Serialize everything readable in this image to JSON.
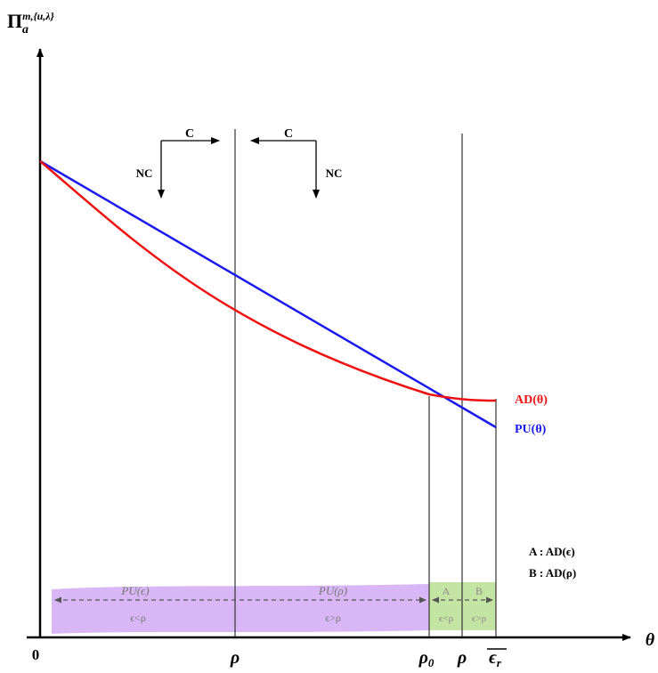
{
  "axes": {
    "y_label_base": "Π",
    "y_label_sup": "m,{u,λ}",
    "y_label_sub": "a",
    "x_label": "θ",
    "origin_label": "0"
  },
  "x_ticks": {
    "rho_1": "ρ",
    "rho_0": "ρ",
    "rho_0_sub": "0",
    "rho_2": "ρ",
    "eps_r": "ϵ",
    "eps_r_sub": "r"
  },
  "flow": {
    "left_top": "C",
    "left_side": "NC",
    "right_top": "C",
    "right_side": "NC"
  },
  "curves": {
    "ad_label": "AD(θ)",
    "pu_label": "PU(θ)",
    "ad_color": "#ee1111",
    "pu_color": "#1a1aee"
  },
  "legend": {
    "a_line": "A : AD(ϵ)",
    "b_line": "B : AD(ρ)"
  },
  "bands": {
    "pu_eps": "PU(ϵ)",
    "pu_rho": "PU(ρ)",
    "eps_lt_rho_left": "ϵ<ρ",
    "eps_gt_rho_left": "ϵ>ρ",
    "region_a": "A",
    "region_b": "B",
    "eps_lt_rho_right": "ϵ<ρ",
    "eps_gt_rho_right": "ϵ>ρ",
    "purple": "#d9b6f5",
    "green": "#c4e4a3"
  }
}
